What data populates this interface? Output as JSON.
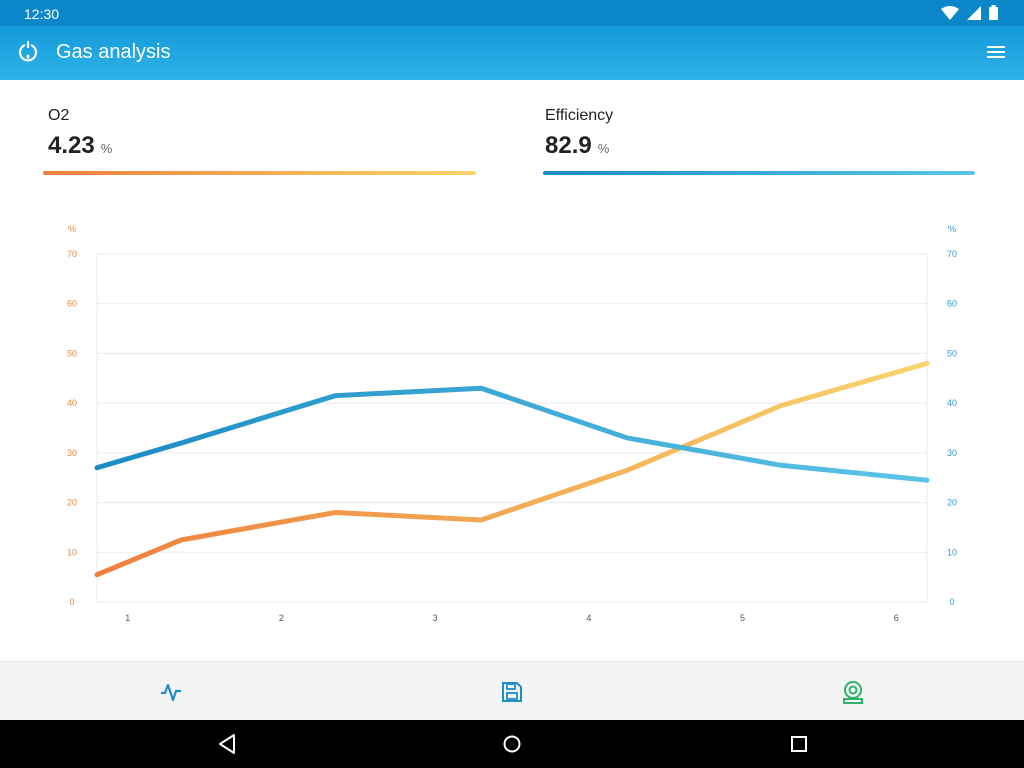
{
  "status_bar": {
    "time": "12:30",
    "icons": [
      "wifi-icon",
      "signal-icon",
      "battery-icon"
    ]
  },
  "app_bar": {
    "title": "Gas analysis",
    "app_icon": "refresh-flame-icon",
    "menu_icon": "hamburger-menu-icon"
  },
  "metrics": {
    "o2": {
      "label": "O2",
      "value": "4.23",
      "unit": "%"
    },
    "efficiency": {
      "label": "Efficiency",
      "value": "82.9",
      "unit": "%"
    }
  },
  "colors": {
    "status_bar": "#0a86c9",
    "app_bar_top": "#139ad9",
    "app_bar_bottom": "#2fb2e7",
    "o2_start": "#ee7f3d",
    "o2_end": "#f8d56d",
    "efficiency_start": "#1c8cc4",
    "efficiency_end": "#5cc4e8",
    "left_axis": "#e8893a",
    "right_axis": "#2a9bd6",
    "nav_icon_blue": "#1f8ec8",
    "nav_icon_green": "#2db36b"
  },
  "chart_data": {
    "type": "line",
    "x": [
      0.8,
      1.35,
      2.35,
      3.3,
      4.25,
      5.25,
      6.2
    ],
    "categories": [
      "1",
      "2",
      "3",
      "4",
      "5",
      "6"
    ],
    "xlim": [
      0.8,
      6.2
    ],
    "ylim_left": [
      0,
      70
    ],
    "ylim_right": [
      0,
      70
    ],
    "yticks": [
      0,
      10,
      20,
      30,
      40,
      50,
      60,
      70
    ],
    "y_left_unit": "%",
    "y_right_unit": "%",
    "grid": true,
    "series": [
      {
        "axis": "left",
        "values": [
          5.5,
          12.5,
          18,
          16.5,
          26.5,
          39.5,
          48
        ]
      },
      {
        "axis": "right",
        "values": [
          27,
          32,
          41.5,
          43,
          33,
          27.5,
          24.5
        ]
      }
    ]
  },
  "bottom_nav": [
    {
      "name": "trend-tab",
      "icon": "pulse-wave-icon"
    },
    {
      "name": "save-tab",
      "icon": "floppy-disk-icon"
    },
    {
      "name": "analyzer-tab",
      "icon": "gas-analyzer-icon"
    }
  ],
  "system_nav": [
    "back-icon",
    "home-icon",
    "recents-icon"
  ]
}
